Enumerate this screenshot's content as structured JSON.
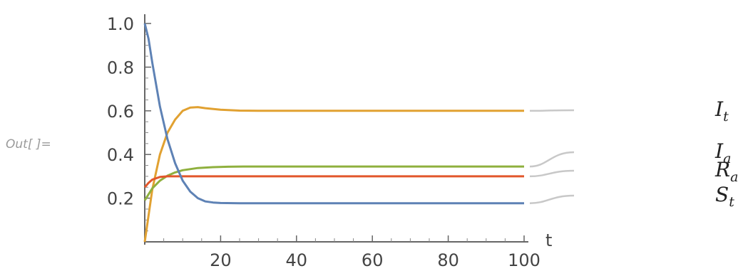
{
  "cell_label": "Out[ ]=",
  "chart_data": {
    "type": "line",
    "xlabel": "t",
    "ylabel": "",
    "xlim": [
      0,
      100
    ],
    "ylim": [
      0,
      1.05
    ],
    "xticks": [
      20,
      40,
      60,
      80,
      100
    ],
    "yticks": [
      0.2,
      0.4,
      0.6,
      0.8,
      1.0
    ],
    "ytick_labels": [
      "0.2",
      "0.4",
      "0.6",
      "0.8",
      "1.0"
    ],
    "series": [
      {
        "name": "I",
        "sub": "t",
        "color": "#e1a131",
        "x": [
          0,
          1,
          2,
          4,
          6,
          8,
          10,
          12,
          14,
          16,
          20,
          25,
          30,
          40,
          60,
          80,
          100
        ],
        "y": [
          0.0,
          0.12,
          0.24,
          0.4,
          0.5,
          0.56,
          0.6,
          0.615,
          0.617,
          0.612,
          0.605,
          0.601,
          0.6,
          0.6,
          0.6,
          0.6,
          0.6
        ]
      },
      {
        "name": "I",
        "sub": "a",
        "color": "#8fb03e",
        "x": [
          0,
          2,
          4,
          6,
          8,
          10,
          14,
          18,
          22,
          26,
          30,
          40,
          60,
          80,
          100
        ],
        "y": [
          0.19,
          0.245,
          0.28,
          0.303,
          0.318,
          0.328,
          0.338,
          0.342,
          0.344,
          0.345,
          0.345,
          0.345,
          0.345,
          0.345,
          0.345
        ]
      },
      {
        "name": "R",
        "sub": "a",
        "color": "#e2572c",
        "x": [
          0,
          1,
          2,
          4,
          6,
          8,
          12,
          20,
          40,
          60,
          80,
          100
        ],
        "y": [
          0.25,
          0.27,
          0.285,
          0.297,
          0.3,
          0.3,
          0.3,
          0.3,
          0.3,
          0.3,
          0.3,
          0.3
        ]
      },
      {
        "name": "S",
        "sub": "t",
        "color": "#5e82b5",
        "x": [
          0,
          1,
          2,
          4,
          6,
          8,
          10,
          12,
          14,
          16,
          18,
          20,
          25,
          30,
          40,
          60,
          80,
          100
        ],
        "y": [
          1.0,
          0.93,
          0.82,
          0.62,
          0.47,
          0.36,
          0.28,
          0.23,
          0.2,
          0.185,
          0.18,
          0.178,
          0.177,
          0.177,
          0.177,
          0.177,
          0.177,
          0.177
        ]
      }
    ],
    "legend": [
      "I_t",
      "I_a",
      "R_a",
      "S_t"
    ],
    "legend_position": "right",
    "grid": false
  }
}
